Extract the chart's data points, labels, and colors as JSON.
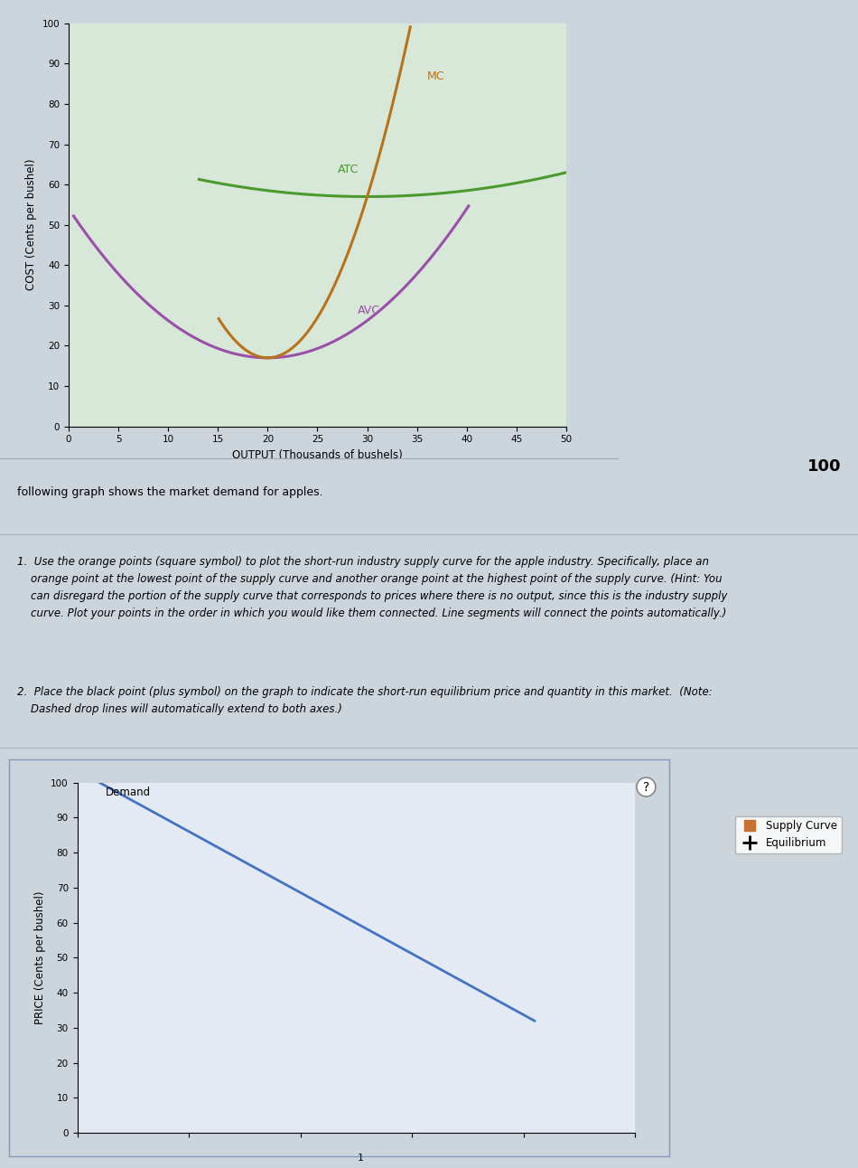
{
  "top_chart": {
    "xlabel": "OUTPUT (Thousands of bushels)",
    "ylabel": "COST (Cents per bushel)",
    "xlim": [
      0,
      50
    ],
    "ylim": [
      0,
      100
    ],
    "xticks": [
      0,
      5,
      10,
      15,
      20,
      25,
      30,
      35,
      40,
      45,
      50
    ],
    "yticks": [
      0,
      10,
      20,
      30,
      40,
      50,
      60,
      70,
      80,
      90,
      100
    ],
    "mc_color": "#b8721a",
    "atc_color": "#4a9a2e",
    "avc_color": "#9b4faa",
    "bg_color": "#d8e8d8",
    "chart_bg": "#d0dcd0"
  },
  "bottom_chart": {
    "ylabel": "PRICE (Cents per bushel)",
    "xlim": [
      0,
      500
    ],
    "ylim": [
      0,
      100
    ],
    "yticks": [
      0,
      10,
      20,
      30,
      40,
      50,
      60,
      70,
      80,
      90,
      100
    ],
    "demand_label": "Demand",
    "demand_color": "#4472c4",
    "demand_x_start": 20,
    "demand_x_end": 410,
    "demand_y_start": 100,
    "demand_y_end": 32,
    "supply_label": "Supply Curve",
    "supply_color": "#c87030",
    "equilibrium_label": "Equilibrium",
    "bg_color": "#e4eaf4",
    "border_color": "#8899bb"
  },
  "page_bg": "#ccd4dc",
  "text_bg": "#d8dce4",
  "top_score": "100",
  "footer_num": "1"
}
